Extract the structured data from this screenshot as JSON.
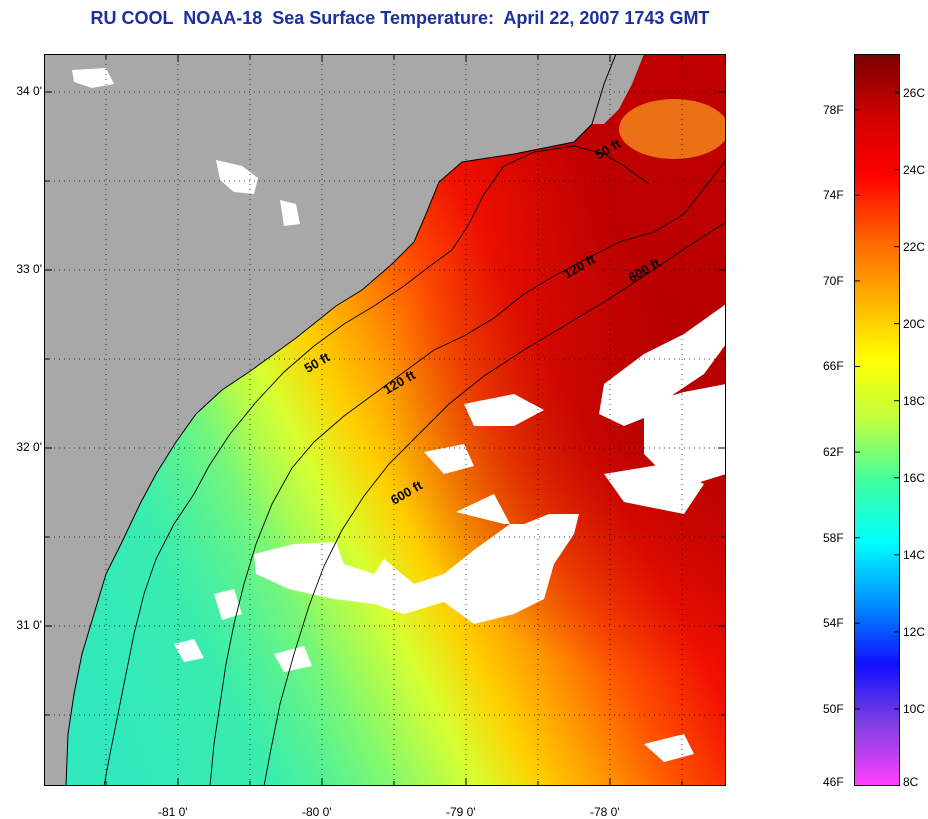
{
  "title": "RU COOL  NOAA-18  Sea Surface Temperature:  April 22, 2007 1743 GMT",
  "map": {
    "lat_ticks": [
      {
        "value": 34,
        "label": "34 0'"
      },
      {
        "value": 33,
        "label": "33 0'"
      },
      {
        "value": 32,
        "label": "32 0'"
      },
      {
        "value": 31,
        "label": "31 0'"
      }
    ],
    "lon_ticks": [
      {
        "value": -81,
        "label": "-81 0'"
      },
      {
        "value": -80,
        "label": "-80 0'"
      },
      {
        "value": -79,
        "label": "-79 0'"
      },
      {
        "value": -78,
        "label": "-78 0'"
      }
    ],
    "contour_labels": [
      {
        "text": "50 ft",
        "lon": -78.08,
        "lat": 33.62
      },
      {
        "text": "120 ft",
        "lon": -78.3,
        "lat": 32.95
      },
      {
        "text": "600 ft",
        "lon": -77.85,
        "lat": 32.93
      },
      {
        "text": "50 ft",
        "lon": -80.1,
        "lat": 32.42
      },
      {
        "text": "120 ft",
        "lon": -79.55,
        "lat": 32.3
      },
      {
        "text": "600 ft",
        "lon": -79.5,
        "lat": 31.68
      }
    ],
    "colors": {
      "land": "#a8a8a8",
      "cloud": "#ffffff",
      "grid": "#000000"
    }
  },
  "colorbar": {
    "fahrenheit_ticks": [
      {
        "value": 78,
        "label": "78F"
      },
      {
        "value": 74,
        "label": "74F"
      },
      {
        "value": 70,
        "label": "70F"
      },
      {
        "value": 66,
        "label": "66F"
      },
      {
        "value": 62,
        "label": "62F"
      },
      {
        "value": 58,
        "label": "58F"
      },
      {
        "value": 54,
        "label": "54F"
      },
      {
        "value": 50,
        "label": "50F"
      },
      {
        "value": 46,
        "label": "46F"
      }
    ],
    "celsius_ticks": [
      {
        "value": 26,
        "label": "26C"
      },
      {
        "value": 24,
        "label": "24C"
      },
      {
        "value": 22,
        "label": "22C"
      },
      {
        "value": 20,
        "label": "20C"
      },
      {
        "value": 18,
        "label": "18C"
      },
      {
        "value": 16,
        "label": "16C"
      },
      {
        "value": 14,
        "label": "14C"
      },
      {
        "value": 12,
        "label": "12C"
      },
      {
        "value": 10,
        "label": "10C"
      },
      {
        "value": 8,
        "label": "8C"
      }
    ],
    "colors": [
      "#ff40ff",
      "#8040e0",
      "#1010ff",
      "#0090ff",
      "#00ffff",
      "#40ffa0",
      "#c0ff40",
      "#ffff00",
      "#ffb000",
      "#ff6000",
      "#ff0000",
      "#d00000",
      "#7a0000"
    ]
  }
}
